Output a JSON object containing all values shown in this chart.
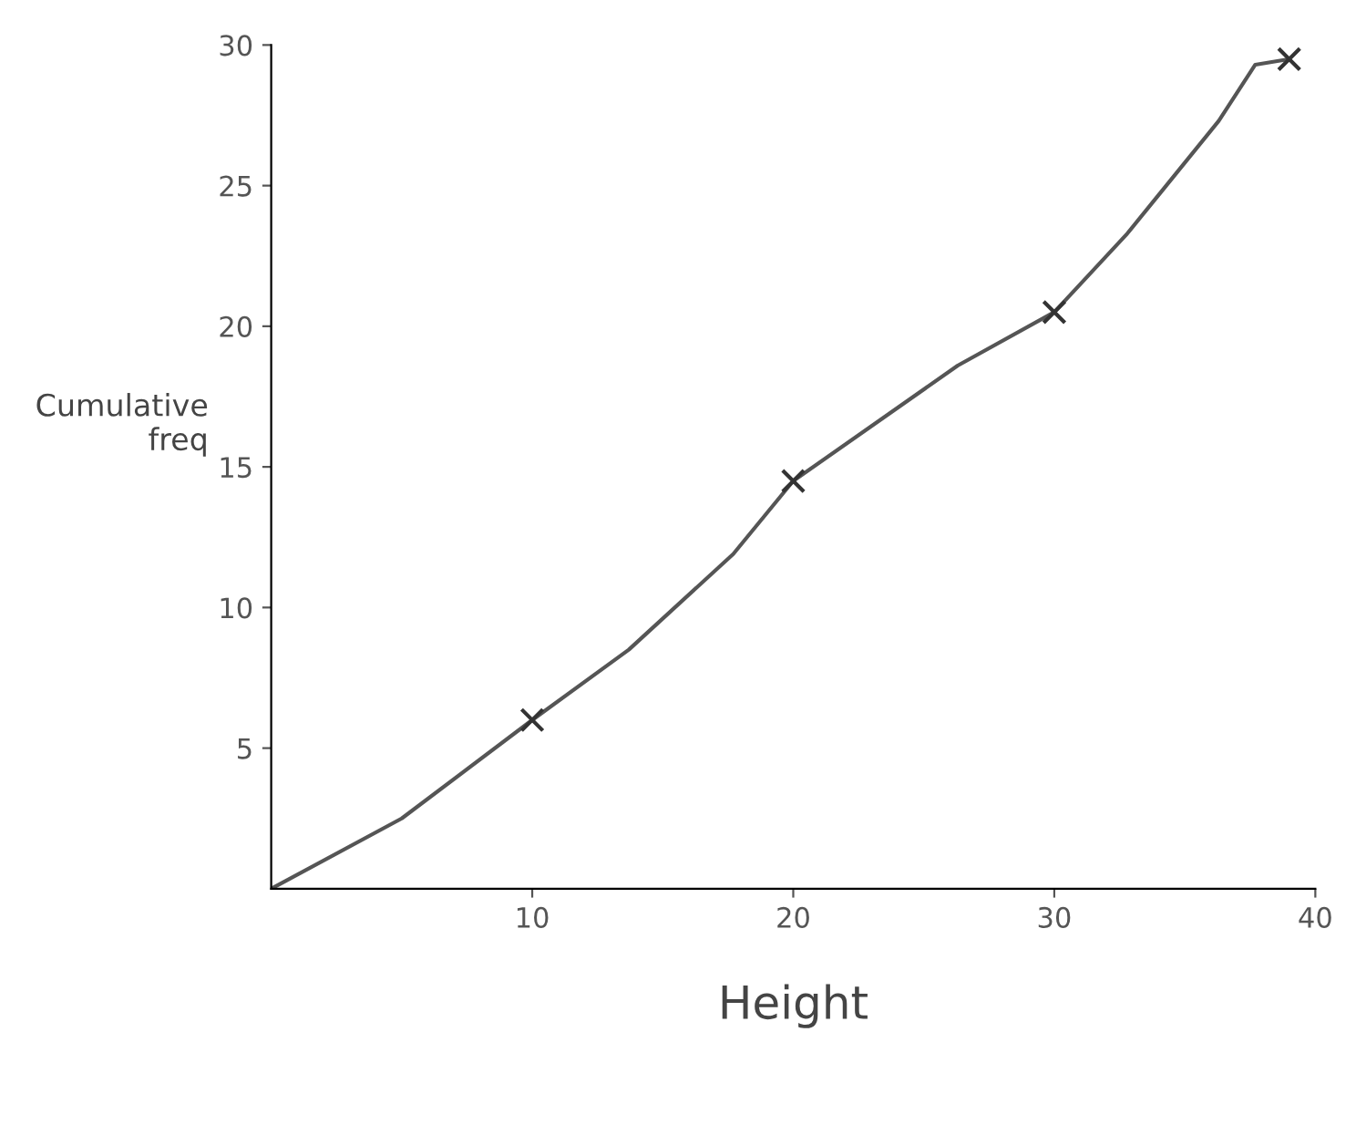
{
  "chart_data": {
    "type": "line",
    "xlabel": "Height",
    "ylabel": "Cumulative\nfreq",
    "xlim": [
      0,
      40
    ],
    "ylim": [
      0,
      30
    ],
    "xticks": [
      10,
      20,
      30,
      40
    ],
    "yticks": [
      5,
      10,
      15,
      20,
      25,
      30
    ],
    "grid": false,
    "series": [
      {
        "color": "#555555",
        "marker": "none",
        "x": [
          0,
          5,
          10,
          13.7,
          17.7,
          20,
          26.3,
          30,
          32.8,
          36.3,
          37.7,
          39
        ],
        "values": [
          0,
          2.5,
          6,
          8.5,
          11.9,
          14.5,
          18.6,
          20.5,
          23.3,
          27.3,
          29.3,
          29.5
        ]
      },
      {
        "type": "scatter",
        "color": "#333333",
        "marker": "cross",
        "x": [
          10,
          20,
          30,
          39
        ],
        "values": [
          6,
          14.5,
          20.5,
          29.5
        ]
      }
    ]
  }
}
